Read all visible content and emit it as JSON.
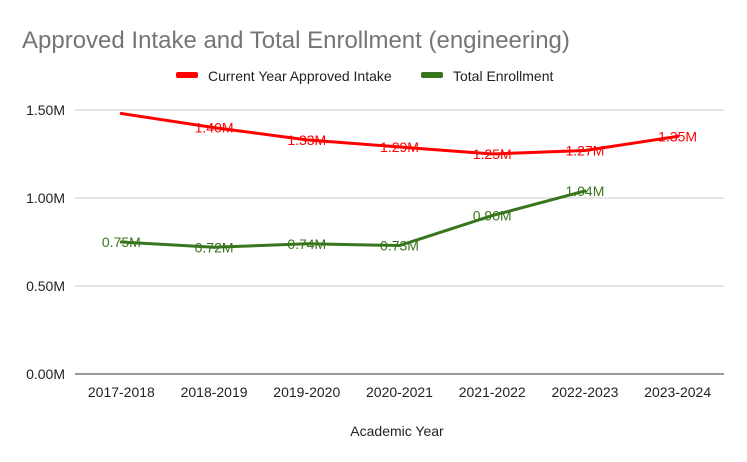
{
  "chart_data": {
    "type": "line",
    "title": "Approved Intake and Total Enrollment (engineering)",
    "xlabel": "Academic Year",
    "ylabel": "",
    "categories": [
      "2017-2018",
      "2018-2019",
      "2019-2020",
      "2020-2021",
      "2021-2022",
      "2022-2023",
      "2023-2024"
    ],
    "ylim": [
      0,
      1.5
    ],
    "yticks": [
      {
        "value": 0,
        "label": "0.00M"
      },
      {
        "value": 0.5,
        "label": "0.50M"
      },
      {
        "value": 1.0,
        "label": "1.00M"
      },
      {
        "value": 1.5,
        "label": "1.50M"
      }
    ],
    "grid": true,
    "legend_position": "top-center",
    "series": [
      {
        "name": "Current Year Approved Intake",
        "color": "#ff0000",
        "values": [
          1.48,
          1.4,
          1.33,
          1.29,
          1.25,
          1.27,
          1.35
        ],
        "labels": [
          "",
          "1.40M",
          "1.33M",
          "1.29M",
          "1.25M",
          "1.27M",
          "1.35M"
        ]
      },
      {
        "name": "Total Enrollment",
        "color": "#38761d",
        "values": [
          0.75,
          0.72,
          0.74,
          0.73,
          0.9,
          1.04,
          null
        ],
        "labels": [
          "0.75M",
          "0.72M",
          "0.74M",
          "0.73M",
          "0.90M",
          "1.04M",
          ""
        ]
      }
    ]
  }
}
